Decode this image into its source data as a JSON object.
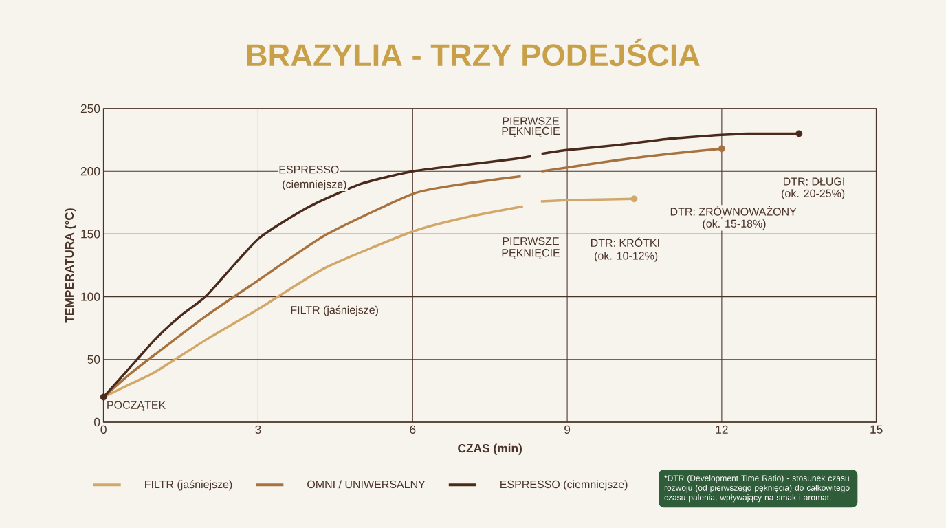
{
  "chart_data": {
    "type": "line",
    "title": "BRAZYLIA - TRZY PODEJŚCIA",
    "xlabel": "CZAS (min)",
    "ylabel": "TEMPERATURA (°C)",
    "xlim": [
      0,
      15
    ],
    "xticks": [
      0,
      3,
      6,
      9,
      12,
      15
    ],
    "ylim": [
      0,
      250
    ],
    "yticks": [
      0,
      50,
      100,
      150,
      200,
      250
    ],
    "grid": true,
    "legend": "bottom",
    "series": [
      {
        "name": "FILTR (jaśniejsze)",
        "color": "#d2a86a",
        "x": [
          0,
          0.5,
          1,
          2,
          3,
          4.3,
          6,
          7,
          8.14,
          8.3,
          8.49,
          9,
          10.3
        ],
        "values": [
          20,
          30,
          40,
          66,
          90,
          123,
          152,
          163,
          172,
          null,
          176,
          177,
          178
        ]
      },
      {
        "name": "OMNI / UNIWERSALNY",
        "color": "#a8723f",
        "x": [
          0,
          0.5,
          1,
          2,
          3,
          4.3,
          6,
          7,
          8.1,
          8.3,
          8.5,
          9,
          10,
          11,
          12
        ],
        "values": [
          20,
          38,
          54,
          85,
          113,
          149,
          182,
          190,
          196,
          null,
          200,
          203,
          209,
          214,
          218
        ]
      },
      {
        "name": "ESPRESSO (ciemniejsze)",
        "color": "#4a2a1c",
        "x": [
          0,
          0.5,
          1,
          1.5,
          2,
          3,
          4,
          5,
          6,
          7,
          8,
          8.3,
          8.4,
          8.5,
          9,
          10,
          11,
          12,
          12.5,
          13,
          13.5
        ],
        "values": [
          20,
          43,
          66,
          85,
          101,
          146,
          172,
          190,
          200,
          205,
          210,
          212,
          null,
          214,
          217,
          221,
          226,
          229,
          230,
          230,
          230
        ]
      }
    ],
    "annotations": [
      "ESPRESSO",
      "(ciemniejsze)",
      "FILTR (jaśniejsze)",
      "POCZĄTEK",
      "PIERWSZE",
      "PĘKNIĘCIE",
      "PIERWSZE",
      "PĘKNIĘCIE",
      "DTR: KRÓTKI",
      "(ok. 10-12%)",
      "DTR: ZRÓWNOWAŻONY",
      "(ok. 15-18%)",
      "DTR: DŁUGI",
      "(ok. 20-25%)",
      "*DTR (Development Time Ratio) - stosunek czasu rozwoju (od pierwszego pęknięcia) do całkowitego czasu palenia, wpływający na smak i aromat."
    ]
  }
}
